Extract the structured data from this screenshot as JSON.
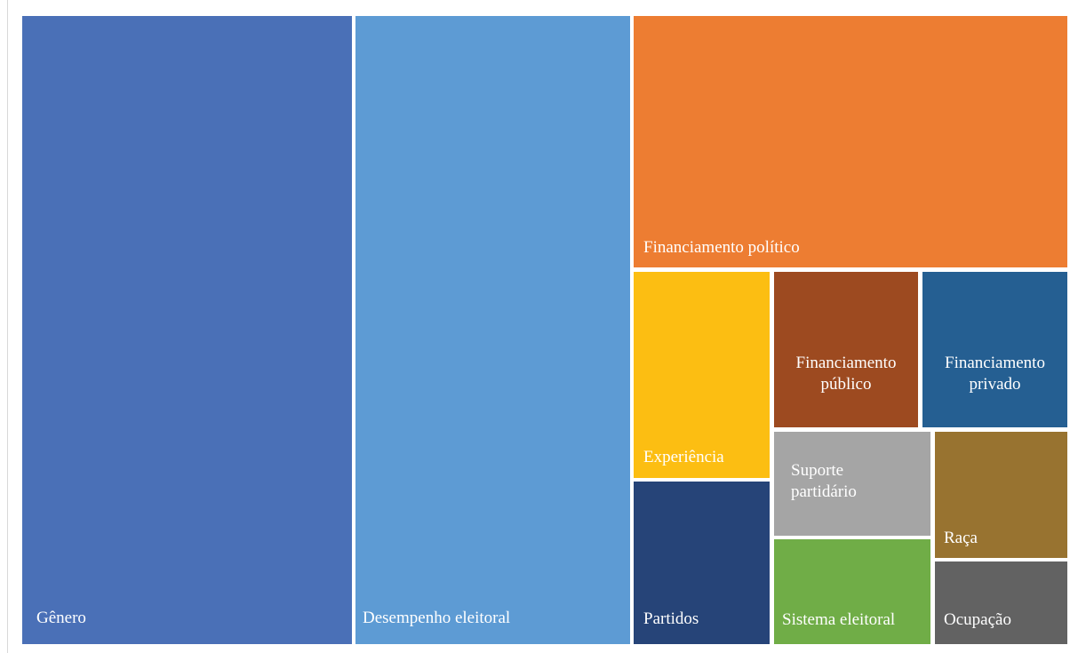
{
  "chart_data": {
    "type": "treemap",
    "title": "",
    "categories": [
      "Gênero",
      "Desempenho eleitoral",
      "Financiamento político",
      "Experiência",
      "Financiamento público",
      "Financiamento privado",
      "Partidos",
      "Suporte partidário",
      "Raça",
      "Sistema eleitoral",
      "Ocupação"
    ],
    "values": [
      23.7,
      19.7,
      16.7,
      6.8,
      5.1,
      5.1,
      4.9,
      4.4,
      3.7,
      3.6,
      2.7
    ],
    "colors": {
      "Gênero": "#4A70B7",
      "Desempenho eleitoral": "#5D9BD4",
      "Financiamento político": "#ED7D32",
      "Experiência": "#FCBE12",
      "Financiamento público": "#9D4A20",
      "Financiamento privado": "#255F92",
      "Partidos": "#264478",
      "Suporte partidário": "#A5A5A5",
      "Raça": "#987330",
      "Sistema eleitoral": "#70AD47",
      "Ocupação": "#626262"
    }
  }
}
